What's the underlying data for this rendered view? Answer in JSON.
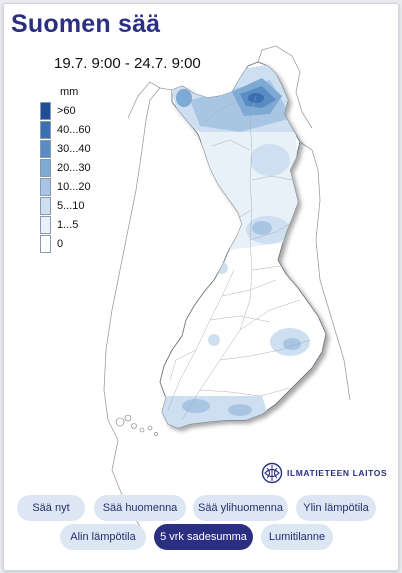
{
  "title": "Suomen sää",
  "period": "19.7. 9:00 - 24.7. 9:00",
  "legend": {
    "unit": "mm",
    "items": [
      {
        "label": ">60",
        "color": "#1f4e96"
      },
      {
        "label": "40...60",
        "color": "#3a6fb0"
      },
      {
        "label": "30...40",
        "color": "#5a8cc4"
      },
      {
        "label": "20...30",
        "color": "#7ea9d4"
      },
      {
        "label": "10...20",
        "color": "#a9c5e4"
      },
      {
        "label": "5...10",
        "color": "#cddff0"
      },
      {
        "label": "1...5",
        "color": "#e8f0f8"
      },
      {
        "label": "0",
        "color": "#ffffff"
      }
    ]
  },
  "logo": {
    "text": "ILMATIETEEN LAITOS",
    "icon": "fmi-logo-icon"
  },
  "buttons": [
    {
      "label": "Sää nyt",
      "active": false
    },
    {
      "label": "Sää huomenna",
      "active": false
    },
    {
      "label": "Sää ylihuomenna",
      "active": false
    },
    {
      "label": "Ylin lämpötila",
      "active": false
    },
    {
      "label": "Alin lämpötila",
      "active": false
    },
    {
      "label": "5 vrk sadesumma",
      "active": true
    },
    {
      "label": "Lumitilanne",
      "active": false
    }
  ],
  "colors": {
    "brand": "#2b2f82",
    "button_bg": "#dde6f3"
  }
}
